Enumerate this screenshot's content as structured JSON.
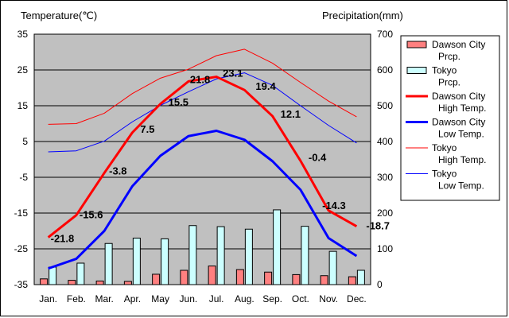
{
  "chart_data": {
    "type": "bar+line",
    "categories": [
      "Jan.",
      "Feb.",
      "Mar.",
      "Apr.",
      "May",
      "Jun.",
      "Jul.",
      "Aug.",
      "Sep.",
      "Oct.",
      "Nov.",
      "Dec."
    ],
    "y_left": {
      "label": "Temperature(℃)",
      "range": [
        -35,
        35
      ],
      "ticks": [
        35,
        25,
        15,
        5,
        -5,
        -15,
        -25,
        -35
      ]
    },
    "y_right": {
      "label": "Precipitation(mm)",
      "range": [
        0,
        700
      ],
      "ticks": [
        700,
        600,
        500,
        400,
        300,
        200,
        100,
        0
      ]
    },
    "bar_series": [
      {
        "name": "Dawson City Prcp.",
        "legend": [
          "Dawson City",
          "Prcp."
        ],
        "color": "#ff8080",
        "values": [
          16,
          12,
          10,
          9,
          29,
          40,
          52,
          42,
          35,
          28,
          25,
          22
        ]
      },
      {
        "name": "Tokyo Prcp.",
        "legend": [
          "Tokyo",
          "Prcp."
        ],
        "color": "#ccffff",
        "values": [
          49,
          60,
          115,
          130,
          128,
          165,
          162,
          155,
          209,
          163,
          93,
          40
        ]
      }
    ],
    "line_series": [
      {
        "name": "Dawson City High Temp.",
        "legend": [
          "Dawson City",
          "High Temp."
        ],
        "color": "#ff0000",
        "width": 3,
        "values": [
          -21.8,
          -15.6,
          -3.8,
          7.5,
          15.5,
          21.8,
          23.1,
          19.4,
          12.1,
          -0.4,
          -14.3,
          -18.7
        ],
        "labels": [
          "-21.8",
          "-15.6",
          "-3.8",
          "7.5",
          "15.5",
          "21.8",
          "23.1",
          "19.4",
          "12.1",
          "-0.4",
          "-14.3",
          "-18.7"
        ]
      },
      {
        "name": "Dawson City Low Temp.",
        "legend": [
          "Dawson City",
          "Low Temp."
        ],
        "color": "#0000ff",
        "width": 3,
        "values": [
          -30.5,
          -27.8,
          -20.0,
          -7.5,
          1.0,
          6.5,
          8.0,
          5.5,
          -0.5,
          -8.5,
          -22.0,
          -27.0
        ]
      },
      {
        "name": "Tokyo High Temp.",
        "legend": [
          "Tokyo",
          "High Temp."
        ],
        "color": "#ff0000",
        "width": 1,
        "values": [
          9.8,
          10.0,
          12.9,
          18.4,
          22.7,
          25.2,
          29.0,
          30.8,
          26.9,
          21.5,
          16.3,
          11.9
        ]
      },
      {
        "name": "Tokyo Low Temp.",
        "legend": [
          "Tokyo",
          "Low Temp."
        ],
        "color": "#0000ff",
        "width": 1,
        "values": [
          2.1,
          2.4,
          5.1,
          10.5,
          15.1,
          18.9,
          22.5,
          24.2,
          20.7,
          15.0,
          9.5,
          4.6
        ]
      }
    ]
  },
  "legend_order": [
    0,
    1,
    2,
    3,
    4,
    5
  ]
}
